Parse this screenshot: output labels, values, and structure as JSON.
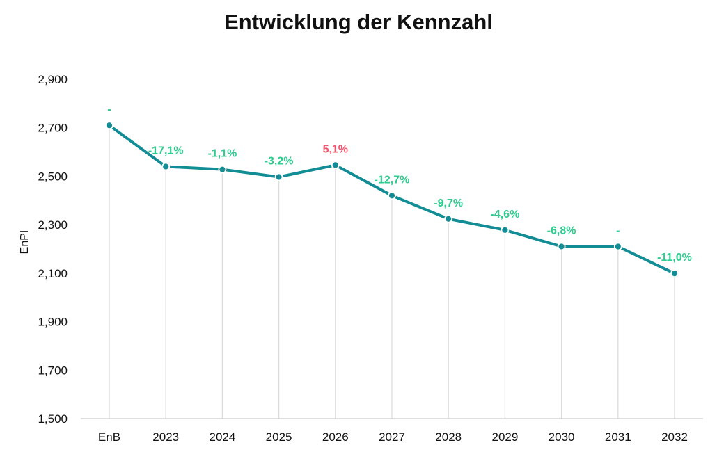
{
  "chart_data": {
    "type": "line",
    "title": "Entwicklung der Kennzahl",
    "xlabel": "",
    "ylabel": "EnPI",
    "categories": [
      "EnB",
      "2023",
      "2024",
      "2025",
      "2026",
      "2027",
      "2028",
      "2029",
      "2030",
      "2031",
      "2032"
    ],
    "series": [
      {
        "values": [
          2710,
          2540,
          2528,
          2497,
          2546,
          2420,
          2324,
          2278,
          2210,
          2210,
          2099
        ]
      }
    ],
    "data_labels": [
      "-",
      "-17,1%",
      "-1,1%",
      "-3,2%",
      "5,1%",
      "-12,7%",
      "-9,7%",
      "-4,6%",
      "-6,8%",
      "-",
      "-11,0%"
    ],
    "data_label_status": [
      "good",
      "good",
      "good",
      "good",
      "bad",
      "good",
      "good",
      "good",
      "good",
      "good",
      "good"
    ],
    "y_ticks": [
      "1,500",
      "1,700",
      "1,900",
      "2,100",
      "2,300",
      "2,500",
      "2,700",
      "2,900"
    ],
    "ylim": [
      1500,
      2900
    ],
    "grid": "vertical",
    "legend": "none",
    "colors": {
      "line": "#138d95",
      "marker_fill": "#138d95",
      "marker_stroke": "#ffffff",
      "label_good": "#2ecc8f",
      "label_bad": "#f2546a",
      "gridline": "#dcdcdc",
      "axis": "#cccccc"
    }
  }
}
